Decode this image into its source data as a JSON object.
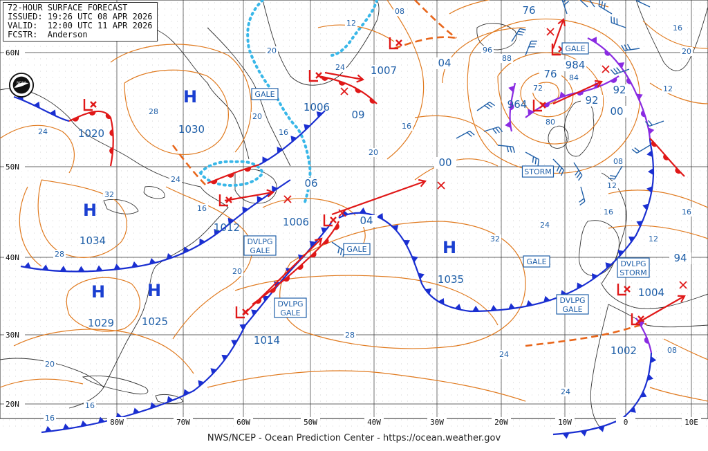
{
  "header": {
    "title": "72-HOUR SURFACE FORECAST",
    "issued": "ISSUED: 19:26 UTC 08 APR 2026",
    "valid": "VALID:  12:00 UTC 11 APR 2026",
    "forecaster": "FCSTR:  Anderson"
  },
  "footer": "NWS/NCEP - Ocean Prediction Center - https://ocean.weather.gov",
  "logo_icon": "noaa-logo-icon",
  "grid": {
    "latitudes": [
      {
        "label": "60N"
      },
      {
        "label": "50N"
      },
      {
        "label": "40N"
      },
      {
        "label": "30N"
      },
      {
        "label": "20N"
      }
    ],
    "longitudes": [
      {
        "label": "80W"
      },
      {
        "label": "70W"
      },
      {
        "label": "60W"
      },
      {
        "label": "50W"
      },
      {
        "label": "40W"
      },
      {
        "label": "30W"
      },
      {
        "label": "20W"
      },
      {
        "label": "10W"
      },
      {
        "label": "0"
      },
      {
        "label": "10E"
      }
    ]
  },
  "highs": [
    {
      "letter": "H",
      "pressure": "1030"
    },
    {
      "letter": "H",
      "pressure": "1034"
    },
    {
      "letter": "H",
      "pressure": "1029"
    },
    {
      "letter": "H",
      "pressure": "1025"
    },
    {
      "letter": "H",
      "pressure": "1035"
    }
  ],
  "lows": [
    {
      "pressure": "1020"
    },
    {
      "pressure": "1006"
    },
    {
      "pressure": "1012"
    },
    {
      "pressure": "1006"
    },
    {
      "pressure": "1014"
    },
    {
      "pressure": "964"
    },
    {
      "pressure": "1004"
    },
    {
      "pressure": "1002"
    }
  ],
  "warnings": [
    "GALE",
    "GALE",
    "STORM",
    "DVLPG GALE",
    "GALE",
    "DVLPG GALE",
    "GALE",
    "DVLPG STORM",
    "DVLPG GALE"
  ],
  "isobar_labels": [
    "24",
    "28",
    "20",
    "16",
    "24",
    "32",
    "28",
    "20",
    "24",
    "20",
    "16",
    "16",
    "16",
    "20",
    "28",
    "32",
    "24",
    "16",
    "12",
    "08",
    "00",
    "92",
    "84",
    "80",
    "76",
    "72",
    "88",
    "96",
    "04",
    "08",
    "12",
    "16",
    "20",
    "24",
    "09",
    "1007",
    "06",
    "04",
    "00",
    "76",
    "984",
    "92",
    "12",
    "16",
    "20",
    "94",
    "08",
    "12",
    "16",
    "24"
  ],
  "colors": {
    "isobar": "#e07a1f",
    "cold_front": "#1a2fd1",
    "warm_front": "#e01818",
    "occluded_front": "#8a2be2",
    "label": "#1f5fa8",
    "ice": "#39b7e8",
    "coast": "#333333",
    "grid": "#333333"
  }
}
